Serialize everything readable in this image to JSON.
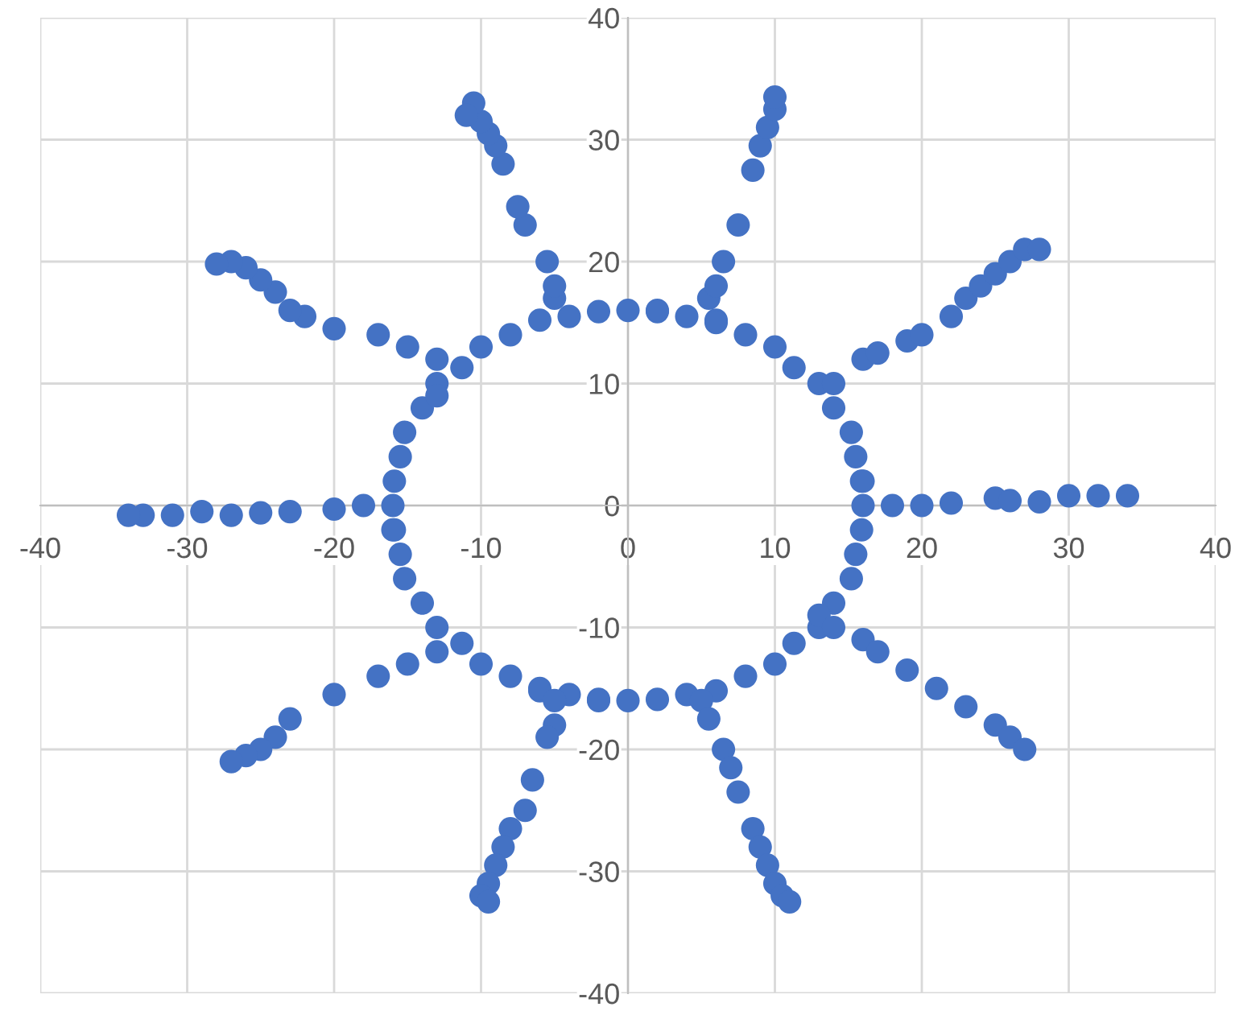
{
  "chart_data": {
    "type": "scatter",
    "marker": "circle",
    "grid": true,
    "xlim": [
      -40,
      40
    ],
    "ylim": [
      -40,
      40
    ],
    "xticks": [
      -40,
      -30,
      -20,
      -10,
      0,
      10,
      20,
      30,
      40
    ],
    "yticks": [
      -40,
      -30,
      -20,
      -10,
      0,
      10,
      20,
      30,
      40
    ],
    "series": [
      {
        "color": "#4472c4",
        "x": [
          15.9,
          15.2,
          13,
          10,
          6,
          2,
          -2,
          -6,
          -10,
          -13,
          -15.2,
          -15.9,
          -15.9,
          -15.2,
          -13,
          -10,
          -6,
          -2,
          2,
          6,
          10,
          13,
          15.2,
          15.9,
          16,
          15.5,
          14,
          11.3,
          8,
          4,
          0,
          -4,
          -8,
          -11.3,
          -14,
          -15.5,
          -16,
          -15.5,
          -14,
          -11.3,
          -8,
          -4,
          0,
          4,
          8,
          11.3,
          14,
          15.5,
          16,
          -16,
          2,
          -2,
          6,
          -6,
          13,
          -13,
          5.5,
          6,
          6.5,
          7.5,
          8.5,
          9,
          9.5,
          10,
          10,
          -5,
          -5,
          -5.5,
          -7,
          -7.5,
          -8.5,
          -9,
          -9.5,
          -10,
          -10.5,
          -11,
          -13,
          -15,
          -17,
          -20,
          -22,
          -23,
          -24,
          -25,
          -26,
          -27,
          -28,
          -18,
          -20,
          -23,
          -25,
          -27,
          -29,
          -31,
          -33,
          -34,
          -13,
          -15,
          -17,
          -20,
          -23,
          -24,
          -25,
          -26,
          -27,
          -5,
          -5,
          -5.5,
          -6.5,
          -7,
          -8,
          -8.5,
          -9,
          -9.5,
          -10,
          -9.5,
          5,
          5.5,
          6.5,
          7,
          7.5,
          8.5,
          9,
          9.5,
          10,
          10.5,
          11,
          14,
          16,
          17,
          19,
          21,
          23,
          25,
          26,
          27,
          18,
          20,
          22,
          25,
          26,
          28,
          30,
          32,
          34,
          14,
          16,
          17,
          19,
          20,
          22,
          23,
          24,
          25,
          26,
          27,
          28
        ],
        "values": [
          2,
          6,
          10,
          13,
          15.2,
          15.9,
          15.9,
          15.2,
          13,
          10,
          6,
          2,
          -2,
          -6,
          -10,
          -13,
          -15.2,
          -15.9,
          -15.9,
          -15.2,
          -13,
          -10,
          -6,
          -2,
          0,
          4,
          8,
          11.3,
          14,
          15.5,
          16,
          15.5,
          14,
          11.3,
          8,
          4,
          0,
          -4,
          -8,
          -11.3,
          -14,
          -15.5,
          -16,
          -15.5,
          -14,
          -11.3,
          -8,
          -4,
          2,
          -2,
          16,
          -16,
          15,
          -15,
          -9,
          9,
          17,
          18,
          20,
          23,
          27.5,
          29.5,
          31,
          32.5,
          33.5,
          17,
          18,
          20,
          23,
          24.5,
          28,
          29.5,
          30.5,
          31.5,
          33,
          32,
          12,
          13,
          14,
          14.5,
          15.5,
          16,
          17.5,
          18.5,
          19.5,
          20,
          19.8,
          0,
          -0.3,
          -0.5,
          -0.6,
          -0.8,
          -0.5,
          -0.8,
          -0.8,
          -0.8,
          -12,
          -13,
          -14,
          -15.5,
          -17.5,
          -19,
          -20,
          -20.5,
          -21,
          -16,
          -18,
          -19,
          -22.5,
          -25,
          -26.5,
          -28,
          -29.5,
          -31,
          -32,
          -32.5,
          -16,
          -17.5,
          -20,
          -21.5,
          -23.5,
          -26.5,
          -28,
          -29.5,
          -31,
          -32,
          -32.5,
          -10,
          -11,
          -12,
          -13.5,
          -15,
          -16.5,
          -18,
          -19,
          -20,
          0,
          0,
          0.2,
          0.6,
          0.4,
          0.3,
          0.8,
          0.8,
          0.8,
          10,
          12,
          12.5,
          13.5,
          14,
          15.5,
          17,
          18,
          19,
          20,
          21,
          21
        ]
      }
    ]
  }
}
